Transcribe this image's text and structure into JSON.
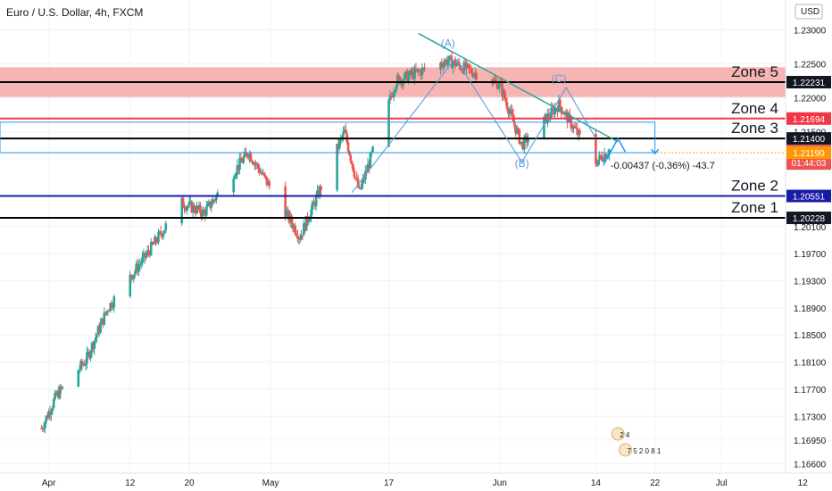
{
  "header": {
    "symbol": "Euro / U.S. Dollar, 4h, FXCM",
    "currency": "USD"
  },
  "colors": {
    "up": "#26a69a",
    "down": "#ef5350",
    "zone5_band": "#f5a8a4",
    "zone4_line": "#f23645",
    "zone3_line": "#000000",
    "zone2_line": "#1a1aa8",
    "zone1_line": "#000000",
    "current_price_line": "#ff9800",
    "trendline": "#26a69a",
    "abc_line": "#5b9bd5",
    "projection": "#2196f3"
  },
  "chart_data": {
    "type": "candlestick",
    "title": "Euro / U.S. Dollar, 4h, FXCM",
    "xlabel": "",
    "ylabel": "",
    "ylim": [
      1.1646,
      1.2318
    ],
    "x_tick_labels": [
      "Apr",
      "12",
      "20",
      "May",
      "17",
      "Jun",
      "14",
      "22",
      "Jul",
      "12"
    ],
    "y_tick_labels": [
      "1.23000",
      "1.22500",
      "1.22000",
      "1.21500",
      "1.21100",
      "1.20100",
      "1.19700",
      "1.19300",
      "1.18900",
      "1.18500",
      "1.18100",
      "1.17700",
      "1.17300",
      "1.16950",
      "1.16600"
    ],
    "series": [
      {
        "price_path": [
          {
            "date": "2021-03-31",
            "price": 1.1712
          },
          {
            "date": "2021-04-02",
            "price": 1.176
          },
          {
            "date": "2021-04-06",
            "price": 1.1812
          },
          {
            "date": "2021-04-09",
            "price": 1.189
          },
          {
            "date": "2021-04-14",
            "price": 1.1965
          },
          {
            "date": "2021-04-19",
            "price": 1.2045
          },
          {
            "date": "2021-04-22",
            "price": 1.203
          },
          {
            "date": "2021-04-28",
            "price": 1.212
          },
          {
            "date": "2021-05-05",
            "price": 1.1995
          },
          {
            "date": "2021-05-11",
            "price": 1.215
          },
          {
            "date": "2021-05-13",
            "price": 1.206
          },
          {
            "date": "2021-05-18",
            "price": 1.2225
          },
          {
            "date": "2021-05-25",
            "price": 1.2255
          },
          {
            "date": "2021-06-01",
            "price": 1.222
          },
          {
            "date": "2021-06-04",
            "price": 1.213
          },
          {
            "date": "2021-06-09",
            "price": 1.219
          },
          {
            "date": "2021-06-14",
            "price": 1.2105
          },
          {
            "date": "2021-06-16",
            "price": 1.2125
          }
        ]
      }
    ],
    "zones": [
      {
        "label": "Zone 5",
        "price": 1.22231,
        "band": [
          1.22011,
          1.22451
        ]
      },
      {
        "label": "Zone 4",
        "price": 1.21694
      },
      {
        "label": "Zone 3",
        "price": 1.214
      },
      {
        "label": "Zone 2",
        "price": 1.20551
      },
      {
        "label": "Zone 1",
        "price": 1.20228
      }
    ],
    "price_badges": [
      {
        "value": "1.22231",
        "color": "#131722",
        "price": 1.22231
      },
      {
        "value": "1.21694",
        "color": "#f23645",
        "price": 1.21694
      },
      {
        "value": "1.21400",
        "color": "#131722",
        "price": 1.214
      },
      {
        "value": "1.21214",
        "color": "#ef5350",
        "price": 1.21214,
        "countdown": "01:44:03"
      },
      {
        "value": "1.21190",
        "color": "#ff9800",
        "price": 1.2119
      },
      {
        "value": "1.20551",
        "color": "#1a1aa8",
        "price": 1.20551
      },
      {
        "value": "1.20228",
        "color": "#131722",
        "price": 1.20228
      }
    ],
    "wave_labels": [
      {
        "text": "(A)",
        "date": "2021-05-25",
        "price": 1.2275
      },
      {
        "text": "(B)",
        "date": "2021-06-04",
        "price": 1.2098
      },
      {
        "text": "(C)",
        "date": "2021-06-09",
        "price": 1.2223
      }
    ],
    "measurement": "-0.00437 (-0.36%) -43.7",
    "event_markers": [
      {
        "text": "2 4",
        "date": "2021-06-17"
      },
      {
        "text": "7 5 2 0 8 1",
        "date": "2021-06-18"
      }
    ]
  }
}
